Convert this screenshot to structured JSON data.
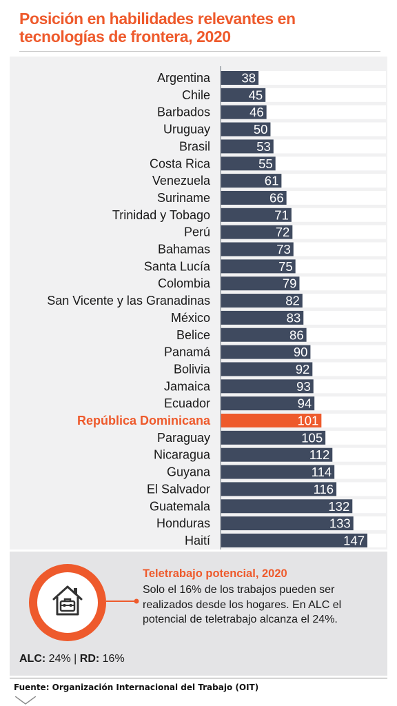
{
  "header": {
    "title": "Posición en habilidades relevantes en tecnologías de frontera, 2020"
  },
  "chart_data": {
    "type": "bar",
    "orientation": "horizontal",
    "categories": [
      "Argentina",
      "Chile",
      "Barbados",
      "Uruguay",
      "Brasil",
      "Costa Rica",
      "Venezuela",
      "Suriname",
      "Trinidad y Tobago",
      "Perú",
      "Bahamas",
      "Santa Lucía",
      "Colombia",
      "San Vicente y las Granadinas",
      "México",
      "Belice",
      "Panamá",
      "Bolivia",
      "Jamaica",
      "Ecuador",
      "República Dominicana",
      "Paraguay",
      "Nicaragua",
      "Guyana",
      "El Salvador",
      "Guatemala",
      "Honduras",
      "Haití"
    ],
    "values": [
      38,
      45,
      46,
      50,
      53,
      55,
      61,
      66,
      71,
      72,
      73,
      75,
      79,
      82,
      83,
      86,
      90,
      92,
      93,
      94,
      101,
      105,
      112,
      114,
      116,
      132,
      133,
      147
    ],
    "highlight": "República Dominicana",
    "xlim": [
      0,
      147
    ],
    "data_labels": true,
    "grid": false,
    "colors": {
      "bar": "#3f4a5f",
      "highlight": "#ee5a2c",
      "track": "#ffffff",
      "label": "#1a1a1a"
    }
  },
  "info": {
    "heading": "Teletrabajo potencial, 2020",
    "text": "Solo el 16% de los trabajos pueden ser realizados desde los hogares. En ALC el potencial de teletrabajo alcanza el 24%.",
    "icon": "house-briefcase-icon",
    "alc_label": "ALC:",
    "alc_value": "24%",
    "separator": "|",
    "rd_label": "RD:",
    "rd_value": "16%"
  },
  "footer": {
    "source": "Fuente: Organización Internacional del Trabajo (OIT)"
  },
  "colors": {
    "accent": "#ee5a2c",
    "dark": "#3f4a5f"
  }
}
